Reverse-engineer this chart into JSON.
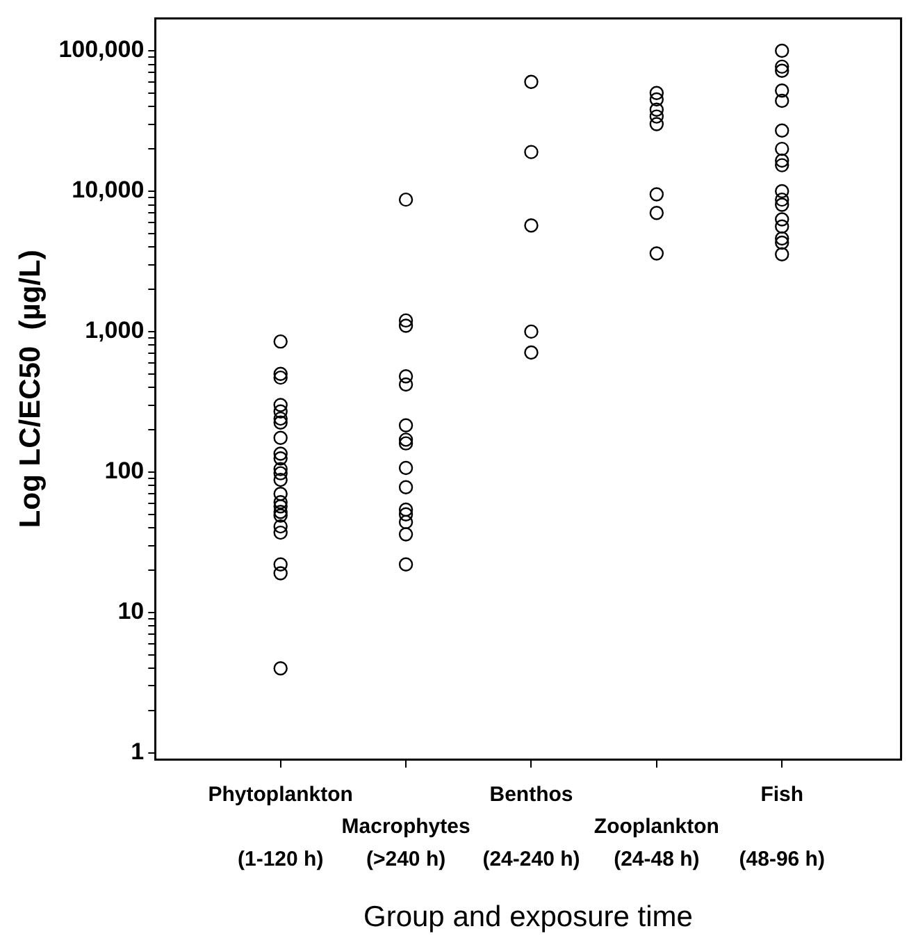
{
  "chart_data": {
    "type": "scatter",
    "xlabel": "Group and exposure time",
    "ylabel": "Log LC/EC50  (µg/L)",
    "categories": [
      "Phytoplankton (1-120 h)",
      "Macrophytes (>240 h)",
      "Benthos (24-240 h)",
      "Zooplankton (24-48 h)",
      "Fish (48-96 h)"
    ],
    "log": "y",
    "ylim": [
      0.9,
      170000
    ],
    "yticks": [
      1,
      {
        "value": 2,
        "label": null
      },
      {
        "value": 3,
        "label": null
      },
      {
        "value": 4,
        "label": null
      },
      {
        "value": 5,
        "label": null
      },
      {
        "value": 6,
        "label": null
      },
      {
        "value": 7,
        "label": null
      },
      {
        "value": 8,
        "label": null
      },
      {
        "value": 9,
        "label": null
      },
      10,
      {
        "value": 20,
        "label": null
      },
      {
        "value": 30,
        "label": null
      },
      {
        "value": 40,
        "label": null
      },
      {
        "value": 50,
        "label": null
      },
      {
        "value": 60,
        "label": null
      },
      {
        "value": 70,
        "label": null
      },
      {
        "value": 80,
        "label": null
      },
      {
        "value": 90,
        "label": null
      },
      100,
      {
        "value": 200,
        "label": null
      },
      {
        "value": 300,
        "label": null
      },
      {
        "value": 400,
        "label": null
      },
      {
        "value": 500,
        "label": null
      },
      {
        "value": 600,
        "label": null
      },
      {
        "value": 700,
        "label": null
      },
      {
        "value": 800,
        "label": null
      },
      {
        "value": 900,
        "label": null
      },
      {
        "value": 1000,
        "label": "1,000"
      },
      {
        "value": 2000,
        "label": null
      },
      {
        "value": 3000,
        "label": null
      },
      {
        "value": 4000,
        "label": null
      },
      {
        "value": 5000,
        "label": null
      },
      {
        "value": 6000,
        "label": null
      },
      {
        "value": 7000,
        "label": null
      },
      {
        "value": 8000,
        "label": null
      },
      {
        "value": 9000,
        "label": null
      },
      {
        "value": 10000,
        "label": "10,000"
      },
      {
        "value": 20000,
        "label": null
      },
      {
        "value": 30000,
        "label": null
      },
      {
        "value": 40000,
        "label": null
      },
      {
        "value": 50000,
        "label": null
      },
      {
        "value": 60000,
        "label": null
      },
      {
        "value": 70000,
        "label": null
      },
      {
        "value": 80000,
        "label": null
      },
      {
        "value": 90000,
        "label": null
      },
      {
        "value": 100000,
        "label": "100,000"
      }
    ],
    "marker": "circle",
    "grid": false,
    "legend": false,
    "series": [
      {
        "color": "#000000",
        "x": [
          "Phytoplankton (1-120 h)",
          "Phytoplankton (1-120 h)",
          "Phytoplankton (1-120 h)",
          "Phytoplankton (1-120 h)",
          "Phytoplankton (1-120 h)",
          "Phytoplankton (1-120 h)",
          "Phytoplankton (1-120 h)",
          "Phytoplankton (1-120 h)",
          "Phytoplankton (1-120 h)",
          "Phytoplankton (1-120 h)",
          "Phytoplankton (1-120 h)",
          "Phytoplankton (1-120 h)",
          "Phytoplankton (1-120 h)",
          "Phytoplankton (1-120 h)",
          "Phytoplankton (1-120 h)",
          "Phytoplankton (1-120 h)",
          "Phytoplankton (1-120 h)",
          "Phytoplankton (1-120 h)",
          "Phytoplankton (1-120 h)",
          "Phytoplankton (1-120 h)",
          "Phytoplankton (1-120 h)",
          "Phytoplankton (1-120 h)",
          "Phytoplankton (1-120 h)",
          "Macrophytes (>240 h)",
          "Macrophytes (>240 h)",
          "Macrophytes (>240 h)",
          "Macrophytes (>240 h)",
          "Macrophytes (>240 h)",
          "Macrophytes (>240 h)",
          "Macrophytes (>240 h)",
          "Macrophytes (>240 h)",
          "Macrophytes (>240 h)",
          "Macrophytes (>240 h)",
          "Macrophytes (>240 h)",
          "Macrophytes (>240 h)",
          "Macrophytes (>240 h)",
          "Macrophytes (>240 h)",
          "Macrophytes (>240 h)",
          "Benthos (24-240 h)",
          "Benthos (24-240 h)",
          "Benthos (24-240 h)",
          "Benthos (24-240 h)",
          "Benthos (24-240 h)",
          "Zooplankton (24-48 h)",
          "Zooplankton (24-48 h)",
          "Zooplankton (24-48 h)",
          "Zooplankton (24-48 h)",
          "Zooplankton (24-48 h)",
          "Zooplankton (24-48 h)",
          "Zooplankton (24-48 h)",
          "Zooplankton (24-48 h)",
          "Fish (48-96 h)",
          "Fish (48-96 h)",
          "Fish (48-96 h)",
          "Fish (48-96 h)",
          "Fish (48-96 h)",
          "Fish (48-96 h)",
          "Fish (48-96 h)",
          "Fish (48-96 h)",
          "Fish (48-96 h)",
          "Fish (48-96 h)",
          "Fish (48-96 h)",
          "Fish (48-96 h)",
          "Fish (48-96 h)",
          "Fish (48-96 h)",
          "Fish (48-96 h)",
          "Fish (48-96 h)",
          "Fish (48-96 h)"
        ],
        "values": [
          850,
          500,
          470,
          300,
          270,
          225,
          175,
          135,
          125,
          105,
          98,
          88,
          70,
          61,
          57,
          52,
          49,
          41,
          37,
          22,
          19,
          4,
          240,
          8700,
          1200,
          1100,
          480,
          420,
          215,
          170,
          160,
          107,
          78,
          54,
          50,
          44,
          36,
          22,
          60000,
          19000,
          5700,
          1000,
          710,
          50000,
          45000,
          38000,
          34000,
          30000,
          9500,
          7000,
          3600,
          100000,
          77000,
          72000,
          52000,
          44000,
          27000,
          20000,
          16500,
          15300,
          10000,
          8700,
          8000,
          6300,
          5600,
          4600,
          4300,
          3550
        ]
      }
    ]
  }
}
